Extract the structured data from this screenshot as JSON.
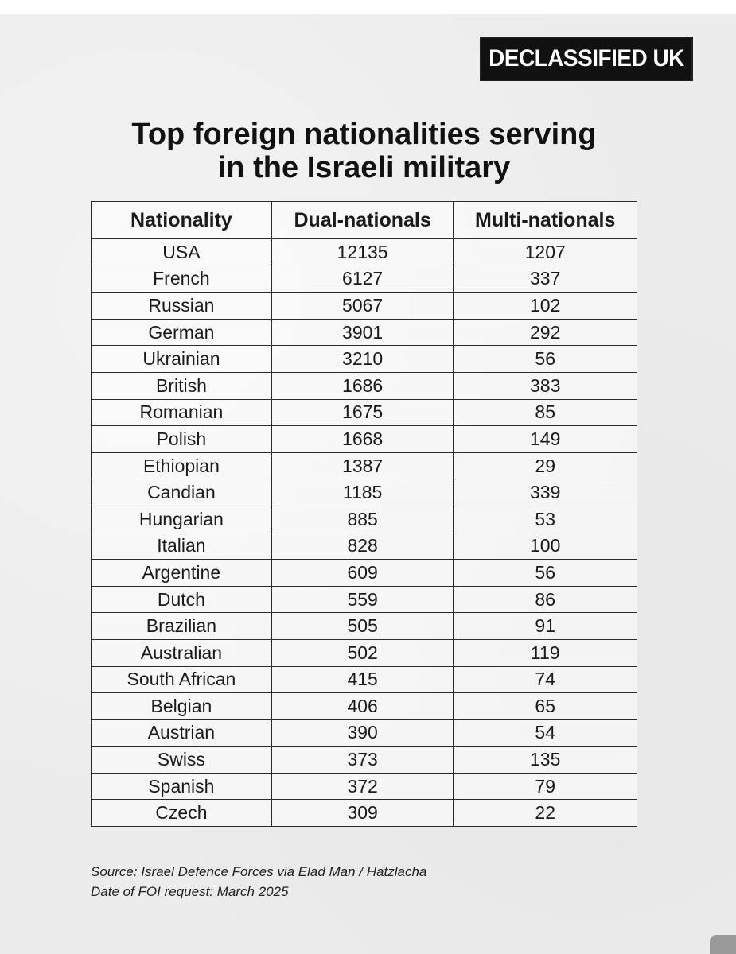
{
  "brand": "DECLASSIFIED UK",
  "title_line1": "Top foreign nationalities serving",
  "title_line2": "in the Israeli military",
  "table": {
    "headers": [
      "Nationality",
      "Dual-nationals",
      "Multi-nationals"
    ],
    "rows": [
      [
        "USA",
        "12135",
        "1207"
      ],
      [
        "French",
        "6127",
        "337"
      ],
      [
        "Russian",
        "5067",
        "102"
      ],
      [
        "German",
        "3901",
        "292"
      ],
      [
        "Ukrainian",
        "3210",
        "56"
      ],
      [
        "British",
        "1686",
        "383"
      ],
      [
        "Romanian",
        "1675",
        "85"
      ],
      [
        "Polish",
        "1668",
        "149"
      ],
      [
        "Ethiopian",
        "1387",
        "29"
      ],
      [
        "Candian",
        "1185",
        "339"
      ],
      [
        "Hungarian",
        "885",
        "53"
      ],
      [
        "Italian",
        "828",
        "100"
      ],
      [
        "Argentine",
        "609",
        "56"
      ],
      [
        "Dutch",
        "559",
        "86"
      ],
      [
        "Brazilian",
        "505",
        "91"
      ],
      [
        "Australian",
        "502",
        "119"
      ],
      [
        "South African",
        "415",
        "74"
      ],
      [
        "Belgian",
        "406",
        "65"
      ],
      [
        "Austrian",
        "390",
        "54"
      ],
      [
        "Swiss",
        "373",
        "135"
      ],
      [
        "Spanish",
        "372",
        "79"
      ],
      [
        "Czech",
        "309",
        "22"
      ]
    ]
  },
  "source": "Source: Israel Defence Forces via Elad Man / Hatzlacha",
  "date": "Date of FOI request: March 2025"
}
